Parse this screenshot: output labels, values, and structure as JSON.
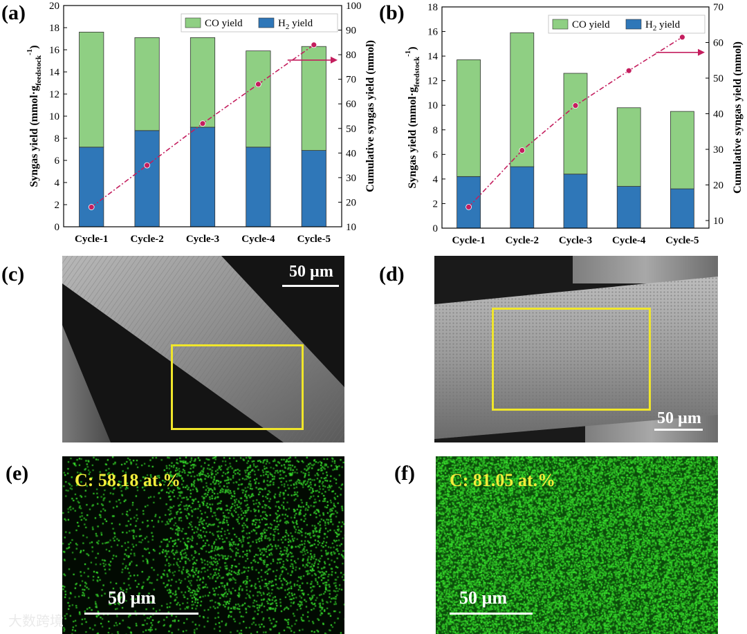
{
  "panels": {
    "a": "(a)",
    "b": "(b)",
    "c": "(c)",
    "d": "(d)",
    "e": "(e)",
    "f": "(f)"
  },
  "chart_data": [
    {
      "type": "bar",
      "stacked": true,
      "panel": "(a)",
      "categories": [
        "Cycle-1",
        "Cycle-2",
        "Cycle-3",
        "Cycle-4",
        "Cycle-5"
      ],
      "series": [
        {
          "name": "H2 yield",
          "values": [
            7.2,
            8.7,
            9.0,
            7.2,
            6.9
          ],
          "color": "#2f77b8"
        },
        {
          "name": "CO yield",
          "values": [
            10.4,
            8.4,
            8.1,
            8.7,
            9.4
          ],
          "color": "#8fcf83"
        }
      ],
      "line": {
        "axis": "right",
        "values": [
          18,
          35,
          52,
          68,
          84
        ],
        "color": "#c41e5e"
      },
      "ylabel": "Syngas yield (mmol·g",
      "ylabel_sub": "feedstock",
      "ylabel_sup": "-1",
      "ylabel_close": ")",
      "ylim": [
        0,
        20
      ],
      "yticks": [
        0,
        2,
        4,
        6,
        8,
        10,
        12,
        14,
        16,
        18,
        20
      ],
      "y2label": "Cumulative syngas yield (mmol)",
      "y2lim": [
        10,
        100
      ],
      "y2ticks": [
        10,
        20,
        30,
        40,
        50,
        60,
        70,
        80,
        90,
        100
      ],
      "legend": {
        "co": "CO yield",
        "h2_base": "H",
        "h2_sub": "2",
        "h2_rest": " yield"
      },
      "legend_position": "top-right"
    },
    {
      "type": "bar",
      "stacked": true,
      "panel": "(b)",
      "categories": [
        "Cycle-1",
        "Cycle-2",
        "Cycle-3",
        "Cycle-4",
        "Cycle-5"
      ],
      "series": [
        {
          "name": "H2 yield",
          "values": [
            4.2,
            5.0,
            4.4,
            3.4,
            3.2
          ],
          "color": "#2f77b8"
        },
        {
          "name": "CO yield",
          "values": [
            9.5,
            10.9,
            8.2,
            6.4,
            6.3
          ],
          "color": "#8fcf83"
        }
      ],
      "line": {
        "axis": "right",
        "values": [
          13.8,
          29.7,
          42.3,
          52.1,
          61.5
        ],
        "color": "#c41e5e"
      },
      "ylabel": "Syngas yield (mmol·g",
      "ylabel_sub": "feedstock",
      "ylabel_sup": "-1",
      "ylabel_close": ")",
      "ylim": [
        0,
        18
      ],
      "yticks": [
        0,
        2,
        4,
        6,
        8,
        10,
        12,
        14,
        16,
        18
      ],
      "y2label": "Cumulative syngas yield (mmol)",
      "y2lim": [
        7.86,
        70
      ],
      "y2ticks": [
        10,
        20,
        30,
        40,
        50,
        60,
        70
      ],
      "legend": {
        "co": "CO yield",
        "h2_base": "H",
        "h2_sub": "2",
        "h2_rest": " yield"
      },
      "legend_position": "top-right"
    }
  ],
  "sem": {
    "c_scale": "50 µm",
    "d_scale": "50 µm"
  },
  "eds": {
    "e_label": "C: 58.18 at.%",
    "e_scale": "50 µm",
    "f_label": "C: 81.05 at.%",
    "f_scale": "50 µm"
  },
  "watermark": "大数跨境"
}
